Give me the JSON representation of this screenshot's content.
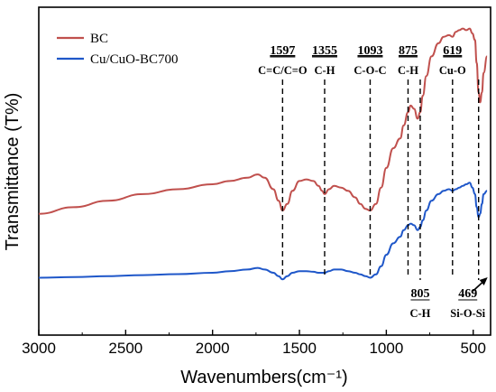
{
  "chart_data": {
    "type": "line",
    "xlabel": "Wavenumbers(cm⁻¹)",
    "ylabel": "Transmittance (T%)",
    "xlim": [
      3000,
      400
    ],
    "x_ticks": [
      3000,
      2500,
      2000,
      1500,
      1000,
      500
    ],
    "x_reversed": true,
    "y_ticks_shown": false,
    "legend_position": "top-left",
    "series": [
      {
        "name": "BC",
        "color": "#c0504d",
        "x": [
          3000,
          2800,
          2600,
          2400,
          2200,
          2000,
          1900,
          1800,
          1740,
          1700,
          1650,
          1620,
          1597,
          1570,
          1540,
          1500,
          1460,
          1420,
          1390,
          1370,
          1355,
          1330,
          1300,
          1260,
          1220,
          1180,
          1150,
          1120,
          1093,
          1060,
          1030,
          1000,
          960,
          920,
          900,
          875,
          860,
          840,
          820,
          805,
          790,
          770,
          740,
          700,
          670,
          640,
          619,
          600,
          580,
          560,
          540,
          520,
          505,
          490,
          480,
          469,
          460,
          450,
          440,
          420
        ],
        "y": [
          0.37,
          0.39,
          0.41,
          0.43,
          0.445,
          0.46,
          0.47,
          0.48,
          0.49,
          0.48,
          0.445,
          0.41,
          0.38,
          0.4,
          0.44,
          0.47,
          0.475,
          0.47,
          0.455,
          0.44,
          0.43,
          0.445,
          0.455,
          0.45,
          0.44,
          0.42,
          0.4,
          0.385,
          0.38,
          0.4,
          0.45,
          0.51,
          0.57,
          0.6,
          0.64,
          0.68,
          0.7,
          0.69,
          0.66,
          0.68,
          0.73,
          0.79,
          0.85,
          0.89,
          0.91,
          0.915,
          0.91,
          0.925,
          0.93,
          0.935,
          0.93,
          0.935,
          0.92,
          0.9,
          0.83,
          0.74,
          0.71,
          0.74,
          0.8,
          0.85
        ]
      },
      {
        "name": "Cu/CuO-BC700",
        "color": "#1f57c9",
        "x": [
          3000,
          2800,
          2600,
          2400,
          2200,
          2000,
          1900,
          1800,
          1740,
          1700,
          1650,
          1620,
          1597,
          1570,
          1540,
          1500,
          1460,
          1420,
          1390,
          1370,
          1355,
          1330,
          1300,
          1260,
          1220,
          1180,
          1150,
          1120,
          1093,
          1060,
          1030,
          1000,
          960,
          920,
          900,
          875,
          860,
          840,
          820,
          805,
          790,
          770,
          740,
          700,
          670,
          640,
          619,
          600,
          580,
          560,
          540,
          520,
          505,
          490,
          480,
          469,
          460,
          450,
          440,
          420
        ],
        "y": [
          0.175,
          0.177,
          0.18,
          0.183,
          0.186,
          0.19,
          0.195,
          0.2,
          0.205,
          0.2,
          0.19,
          0.18,
          0.17,
          0.18,
          0.19,
          0.195,
          0.195,
          0.193,
          0.19,
          0.19,
          0.19,
          0.195,
          0.2,
          0.2,
          0.195,
          0.19,
          0.185,
          0.18,
          0.175,
          0.185,
          0.21,
          0.245,
          0.28,
          0.3,
          0.32,
          0.335,
          0.34,
          0.335,
          0.32,
          0.33,
          0.35,
          0.38,
          0.41,
          0.43,
          0.44,
          0.445,
          0.44,
          0.445,
          0.45,
          0.455,
          0.46,
          0.465,
          0.45,
          0.43,
          0.39,
          0.36,
          0.37,
          0.4,
          0.43,
          0.44
        ]
      }
    ],
    "peaks_top": [
      {
        "x": 1597,
        "number": "1597",
        "label": "C=C/C=O"
      },
      {
        "x": 1355,
        "number": "1355",
        "label": "C-H"
      },
      {
        "x": 1093,
        "number": "1093",
        "label": "C-O-C"
      },
      {
        "x": 875,
        "number": "875",
        "label": "C-H"
      },
      {
        "x": 619,
        "number": "619",
        "label": "Cu-O"
      }
    ],
    "peaks_bottom": [
      {
        "x": 805,
        "number": "805",
        "label": "C-H"
      },
      {
        "x": 469,
        "number": "469",
        "label": "Si-O-Si"
      }
    ]
  }
}
